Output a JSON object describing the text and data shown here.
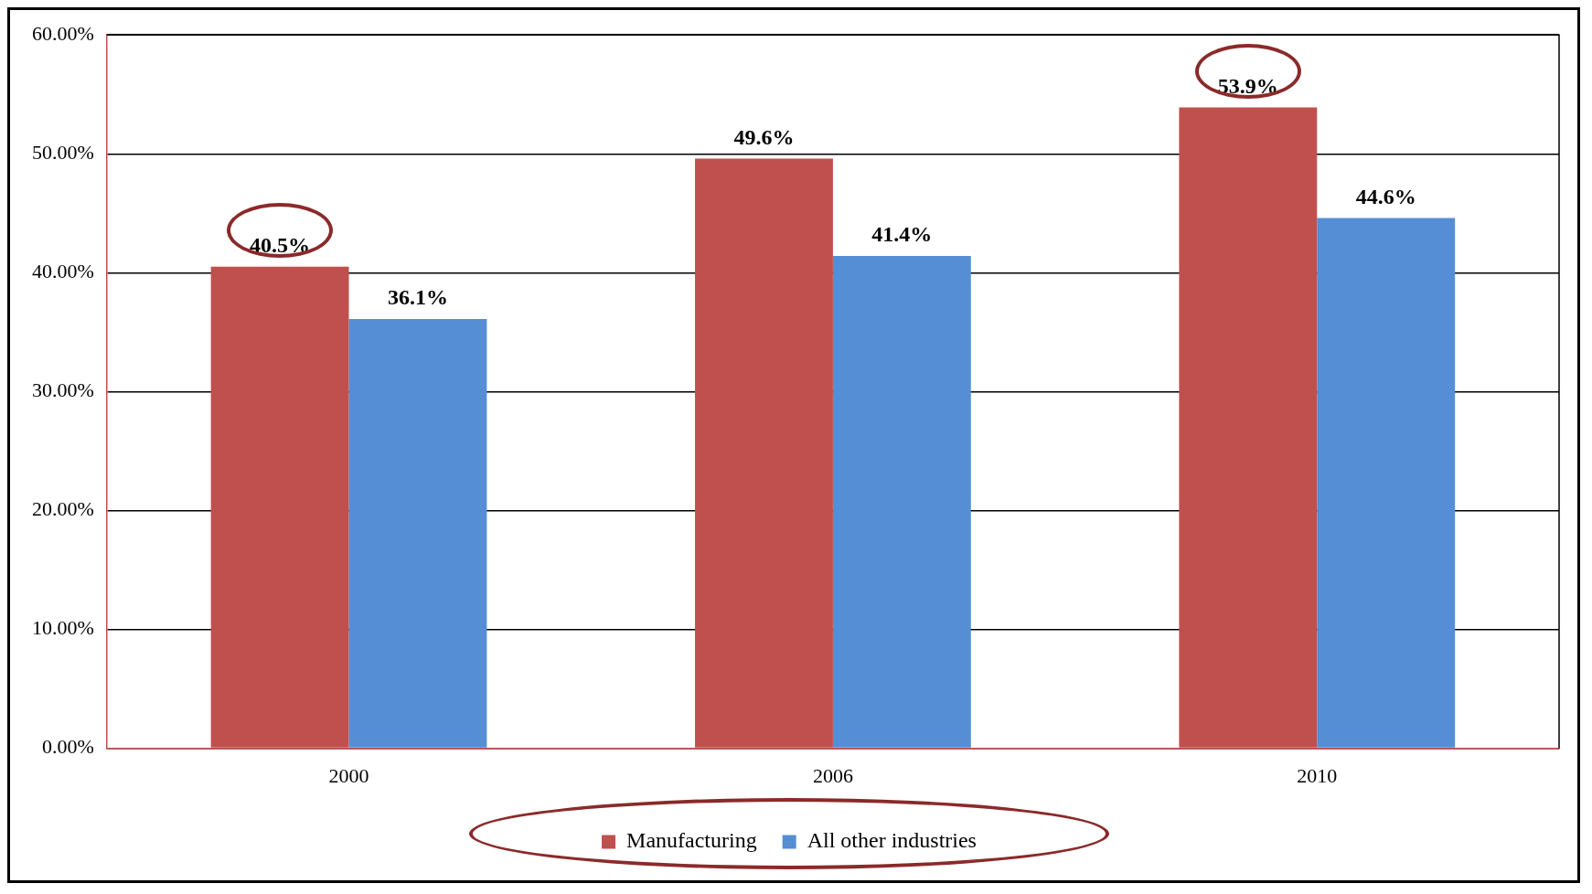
{
  "chart_data": {
    "type": "bar",
    "categories": [
      "2000",
      "2006",
      "2010"
    ],
    "series": [
      {
        "name": "Manufacturing",
        "color": "#c0504d",
        "values": [
          40.5,
          49.6,
          53.9
        ],
        "value_labels": [
          "40.5%",
          "49.6%",
          "53.9%"
        ]
      },
      {
        "name": "All other industries",
        "color": "#558ed5",
        "values": [
          36.1,
          41.4,
          44.6
        ],
        "value_labels": [
          "36.1%",
          "41.4%",
          "44.6%"
        ]
      }
    ],
    "ylim": [
      0,
      60
    ],
    "yticks": [
      {
        "value": 0,
        "label": "0.00%"
      },
      {
        "value": 10,
        "label": "10.00%"
      },
      {
        "value": 20,
        "label": "20.00%"
      },
      {
        "value": 30,
        "label": "30.00%"
      },
      {
        "value": 40,
        "label": "40.00%"
      },
      {
        "value": 50,
        "label": "50.00%"
      },
      {
        "value": 60,
        "label": "60.00%"
      }
    ],
    "grid": "y",
    "legend": "bottom"
  }
}
